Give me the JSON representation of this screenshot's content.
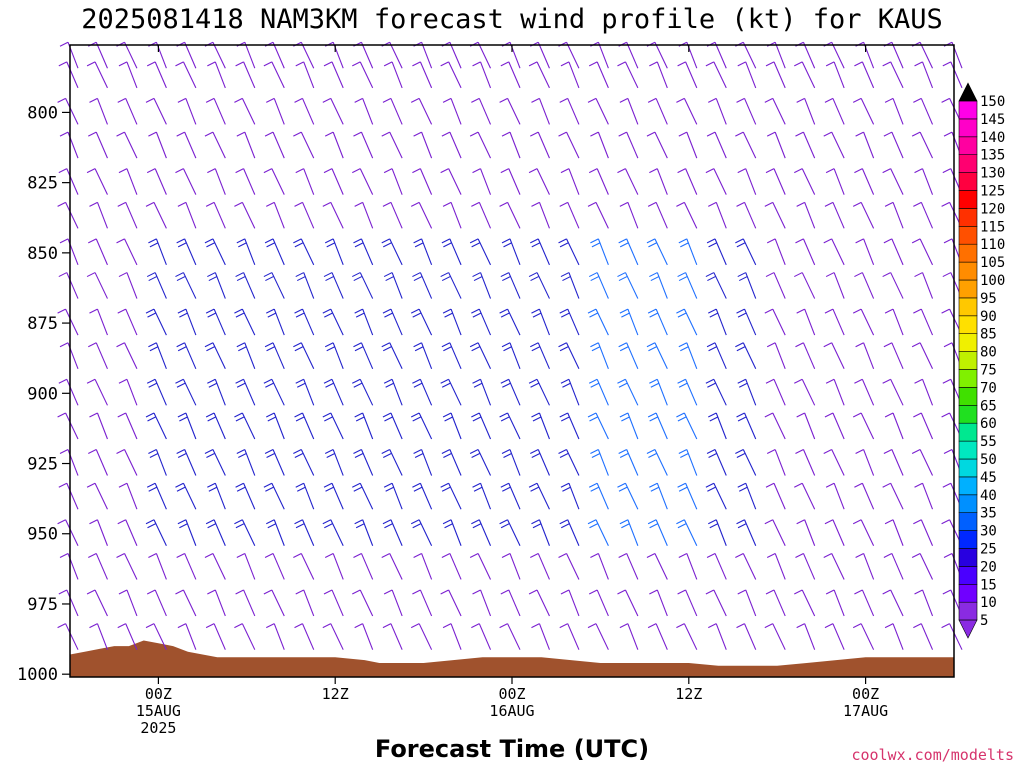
{
  "title": "2025081418 NAM3KM forecast wind profile (kt) for KAUS",
  "credit": "coolwx.com/modelts",
  "chart_data": {
    "type": "wind-barb-time-height",
    "title": "2025081418 NAM3KM forecast wind profile (kt) for KAUS",
    "xlabel": "Forecast Time (UTC)",
    "ylabel": "",
    "y_ticks": [
      "800",
      "825",
      "850",
      "875",
      "900",
      "925",
      "950",
      "975",
      "1000"
    ],
    "y_tick_values": [
      800,
      825,
      850,
      875,
      900,
      925,
      950,
      975,
      1000
    ],
    "ylim": [
      776,
      1001
    ],
    "y_inverted": true,
    "xlim_hours": [
      -6,
      54
    ],
    "x_ticks": [
      {
        "hour": 0,
        "label": "00Z",
        "sub1": "15AUG",
        "sub2": "2025"
      },
      {
        "hour": 12,
        "label": "12Z",
        "sub1": "",
        "sub2": ""
      },
      {
        "hour": 24,
        "label": "00Z",
        "sub1": "16AUG",
        "sub2": ""
      },
      {
        "hour": 36,
        "label": "12Z",
        "sub1": "",
        "sub2": ""
      },
      {
        "hour": 48,
        "label": "00Z",
        "sub1": "17AUG",
        "sub2": ""
      }
    ],
    "barb_times_hours": [
      -6,
      -4,
      -2,
      0,
      2,
      4,
      6,
      8,
      10,
      12,
      14,
      16,
      18,
      20,
      22,
      24,
      26,
      28,
      30,
      32,
      34,
      36,
      38,
      40,
      42,
      44,
      46,
      48,
      50,
      52,
      54
    ],
    "barb_levels_mb": [
      780,
      787,
      800,
      812,
      825,
      837,
      850,
      862,
      875,
      887,
      900,
      912,
      925,
      937,
      950,
      962,
      975,
      987
    ],
    "surface_pressure": {
      "hours": [
        -6,
        -5,
        -4,
        -3,
        -2,
        -1,
        0,
        1,
        2,
        3,
        4,
        5,
        6,
        8,
        10,
        12,
        14,
        15,
        16,
        18,
        20,
        22,
        24,
        26,
        28,
        30,
        32,
        34,
        36,
        38,
        40,
        42,
        44,
        46,
        48,
        50,
        52,
        54
      ],
      "mb": [
        993,
        992,
        991,
        990,
        990,
        988,
        989,
        990,
        992,
        993,
        994,
        994,
        994,
        994,
        994,
        994,
        995,
        996,
        996,
        996,
        995,
        994,
        994,
        994,
        995,
        996,
        996,
        996,
        996,
        997,
        997,
        997,
        996,
        995,
        994,
        994,
        994,
        994
      ],
      "color": "#a0522d"
    },
    "colorbar": {
      "labels": [
        "5",
        "10",
        "15",
        "20",
        "25",
        "30",
        "35",
        "40",
        "45",
        "50",
        "55",
        "60",
        "65",
        "70",
        "75",
        "80",
        "85",
        "90",
        "95",
        "100",
        "105",
        "110",
        "115",
        "120",
        "125",
        "130",
        "135",
        "140",
        "145",
        "150"
      ],
      "colors": [
        "#8a2be2",
        "#7000ff",
        "#4a00ff",
        "#2800e0",
        "#0028ff",
        "#0060ff",
        "#0090ff",
        "#00b0ff",
        "#00d8e0",
        "#00e8c0",
        "#00e890",
        "#20e020",
        "#40e000",
        "#80f000",
        "#c0f000",
        "#f0f000",
        "#ffe000",
        "#ffc800",
        "#ffa000",
        "#ff8c00",
        "#ff7000",
        "#ff5000",
        "#ff3000",
        "#ff0000",
        "#ff0040",
        "#ff0070",
        "#ff00a0",
        "#ff00c8",
        "#ff00e8",
        "#ff40ff"
      ]
    }
  }
}
